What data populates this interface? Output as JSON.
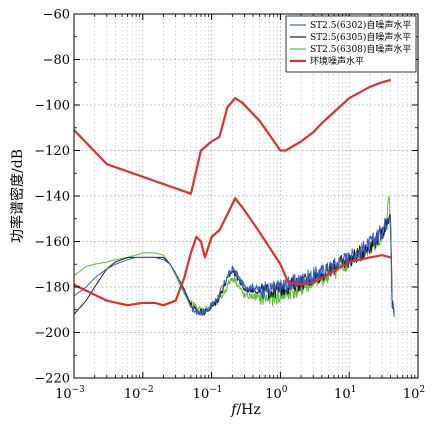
{
  "chart_data": {
    "type": "line",
    "title": "",
    "xlabel_italic": "f",
    "xlabel_unit": "/Hz",
    "ylabel": "功率谱密度/dB",
    "x_scale": "log",
    "xlim": [
      0.001,
      100
    ],
    "ylim": [
      -220,
      -60
    ],
    "x_ticks": [
      {
        "value": 0.001,
        "base": "10",
        "exp": "−3"
      },
      {
        "value": 0.01,
        "base": "10",
        "exp": "−2"
      },
      {
        "value": 0.1,
        "base": "10",
        "exp": "−1"
      },
      {
        "value": 1,
        "base": "10",
        "exp": "0"
      },
      {
        "value": 10,
        "base": "10",
        "exp": "1"
      },
      {
        "value": 100,
        "base": "10",
        "exp": "2"
      }
    ],
    "y_ticks": [
      {
        "value": -60,
        "label": "−60"
      },
      {
        "value": -80,
        "label": "−80"
      },
      {
        "value": -100,
        "label": "−100"
      },
      {
        "value": -120,
        "label": "−120"
      },
      {
        "value": -140,
        "label": "−140"
      },
      {
        "value": -160,
        "label": "−160"
      },
      {
        "value": -180,
        "label": "−180"
      },
      {
        "value": -200,
        "label": "−200"
      },
      {
        "value": -220,
        "label": "−220"
      }
    ],
    "grid": true,
    "legend_position": "top-right",
    "series": [
      {
        "name": "ST2.5(6302)自噪声水平",
        "color": "#3b5fc4",
        "noise": 2.5,
        "x": [
          0.001,
          0.0015,
          0.002,
          0.003,
          0.004,
          0.006,
          0.008,
          0.01,
          0.015,
          0.02,
          0.025,
          0.03,
          0.04,
          0.05,
          0.06,
          0.07,
          0.08,
          0.1,
          0.12,
          0.15,
          0.18,
          0.2,
          0.22,
          0.25,
          0.3,
          0.4,
          0.5,
          0.7,
          1,
          1.5,
          2,
          3,
          5,
          7,
          10,
          15,
          20,
          25,
          30,
          35,
          38,
          40,
          42,
          45
        ],
        "y": [
          -184,
          -180,
          -176,
          -172,
          -170,
          -168,
          -167,
          -167,
          -167,
          -168,
          -170,
          -174,
          -182,
          -189,
          -191,
          -191,
          -191,
          -188,
          -185,
          -179,
          -174,
          -172,
          -173,
          -176,
          -180,
          -180,
          -181,
          -181,
          -180,
          -178,
          -177,
          -175,
          -172,
          -169,
          -167,
          -164,
          -161,
          -158,
          -155,
          -151,
          -147,
          -150,
          -188,
          -193
        ]
      },
      {
        "name": "ST2.5(6305)自噪声水平",
        "color": "#1a1a1a",
        "noise": 2.5,
        "x": [
          0.001,
          0.0015,
          0.002,
          0.003,
          0.004,
          0.006,
          0.008,
          0.01,
          0.015,
          0.02,
          0.025,
          0.03,
          0.04,
          0.05,
          0.06,
          0.07,
          0.08,
          0.1,
          0.12,
          0.15,
          0.18,
          0.2,
          0.22,
          0.25,
          0.3,
          0.4,
          0.5,
          0.7,
          1,
          1.5,
          2,
          3,
          5,
          7,
          10,
          15,
          20,
          25,
          30,
          35,
          38,
          40,
          42,
          45
        ],
        "y": [
          -192,
          -186,
          -180,
          -172,
          -169,
          -167,
          -167,
          -167,
          -167,
          -167,
          -170,
          -174,
          -181,
          -188,
          -190,
          -191,
          -191,
          -189,
          -186,
          -180,
          -175,
          -173,
          -174,
          -177,
          -181,
          -181,
          -182,
          -182,
          -181,
          -179,
          -178,
          -176,
          -173,
          -170,
          -168,
          -165,
          -162,
          -159,
          -156,
          -152,
          -148,
          -152,
          -186,
          -193
        ]
      },
      {
        "name": "ST2.5(6308)自噪声水平",
        "color": "#5bbf3a",
        "noise": 2.5,
        "x": [
          0.001,
          0.0015,
          0.002,
          0.003,
          0.004,
          0.006,
          0.008,
          0.01,
          0.015,
          0.02,
          0.025,
          0.03,
          0.04,
          0.05,
          0.06,
          0.07,
          0.08,
          0.1,
          0.12,
          0.15,
          0.18,
          0.2,
          0.22,
          0.25,
          0.3,
          0.4,
          0.5,
          0.7,
          1,
          1.5,
          2,
          3,
          5,
          7,
          10,
          15,
          20,
          25,
          30,
          35,
          38,
          40,
          42,
          45
        ],
        "y": [
          -175,
          -171,
          -170,
          -169,
          -168,
          -167,
          -166,
          -165,
          -165,
          -166,
          -170,
          -175,
          -183,
          -187,
          -189,
          -190,
          -190,
          -188,
          -187,
          -183,
          -178,
          -176,
          -177,
          -180,
          -184,
          -184,
          -185,
          -185,
          -184,
          -182,
          -181,
          -178,
          -175,
          -172,
          -169,
          -166,
          -163,
          -160,
          -157,
          -153,
          -140,
          -160,
          -188,
          -192
        ]
      },
      {
        "name": "环境噪声水平",
        "color": "#d93030",
        "noise": 0,
        "x": [
          0.001,
          0.003,
          0.05,
          0.07,
          0.1,
          0.13,
          0.17,
          0.22,
          0.28,
          0.5,
          1,
          1.2,
          2,
          3,
          4,
          10,
          20,
          30,
          40
        ],
        "y": [
          -111,
          -126,
          -139,
          -120,
          -116,
          -114,
          -101,
          -97,
          -99,
          -107,
          -120,
          -120,
          -116,
          -112,
          -108,
          -97,
          -92,
          -90,
          -89
        ],
        "x2": [
          0.001,
          0.003,
          0.006,
          0.01,
          0.015,
          0.02,
          0.03,
          0.04,
          0.05,
          0.06,
          0.07,
          0.08,
          0.1,
          0.13,
          0.17,
          0.22,
          0.28,
          0.5,
          1,
          1.3,
          2,
          3,
          4,
          10,
          20,
          30,
          40
        ],
        "y2": [
          -179,
          -186,
          -188,
          -187,
          -187,
          -188,
          -186,
          -176,
          -165,
          -158,
          -160,
          -167,
          -158,
          -155,
          -148,
          -141,
          -145,
          -156,
          -170,
          -178,
          -179,
          -178,
          -176,
          -169,
          -167,
          -166,
          -167
        ]
      }
    ]
  }
}
